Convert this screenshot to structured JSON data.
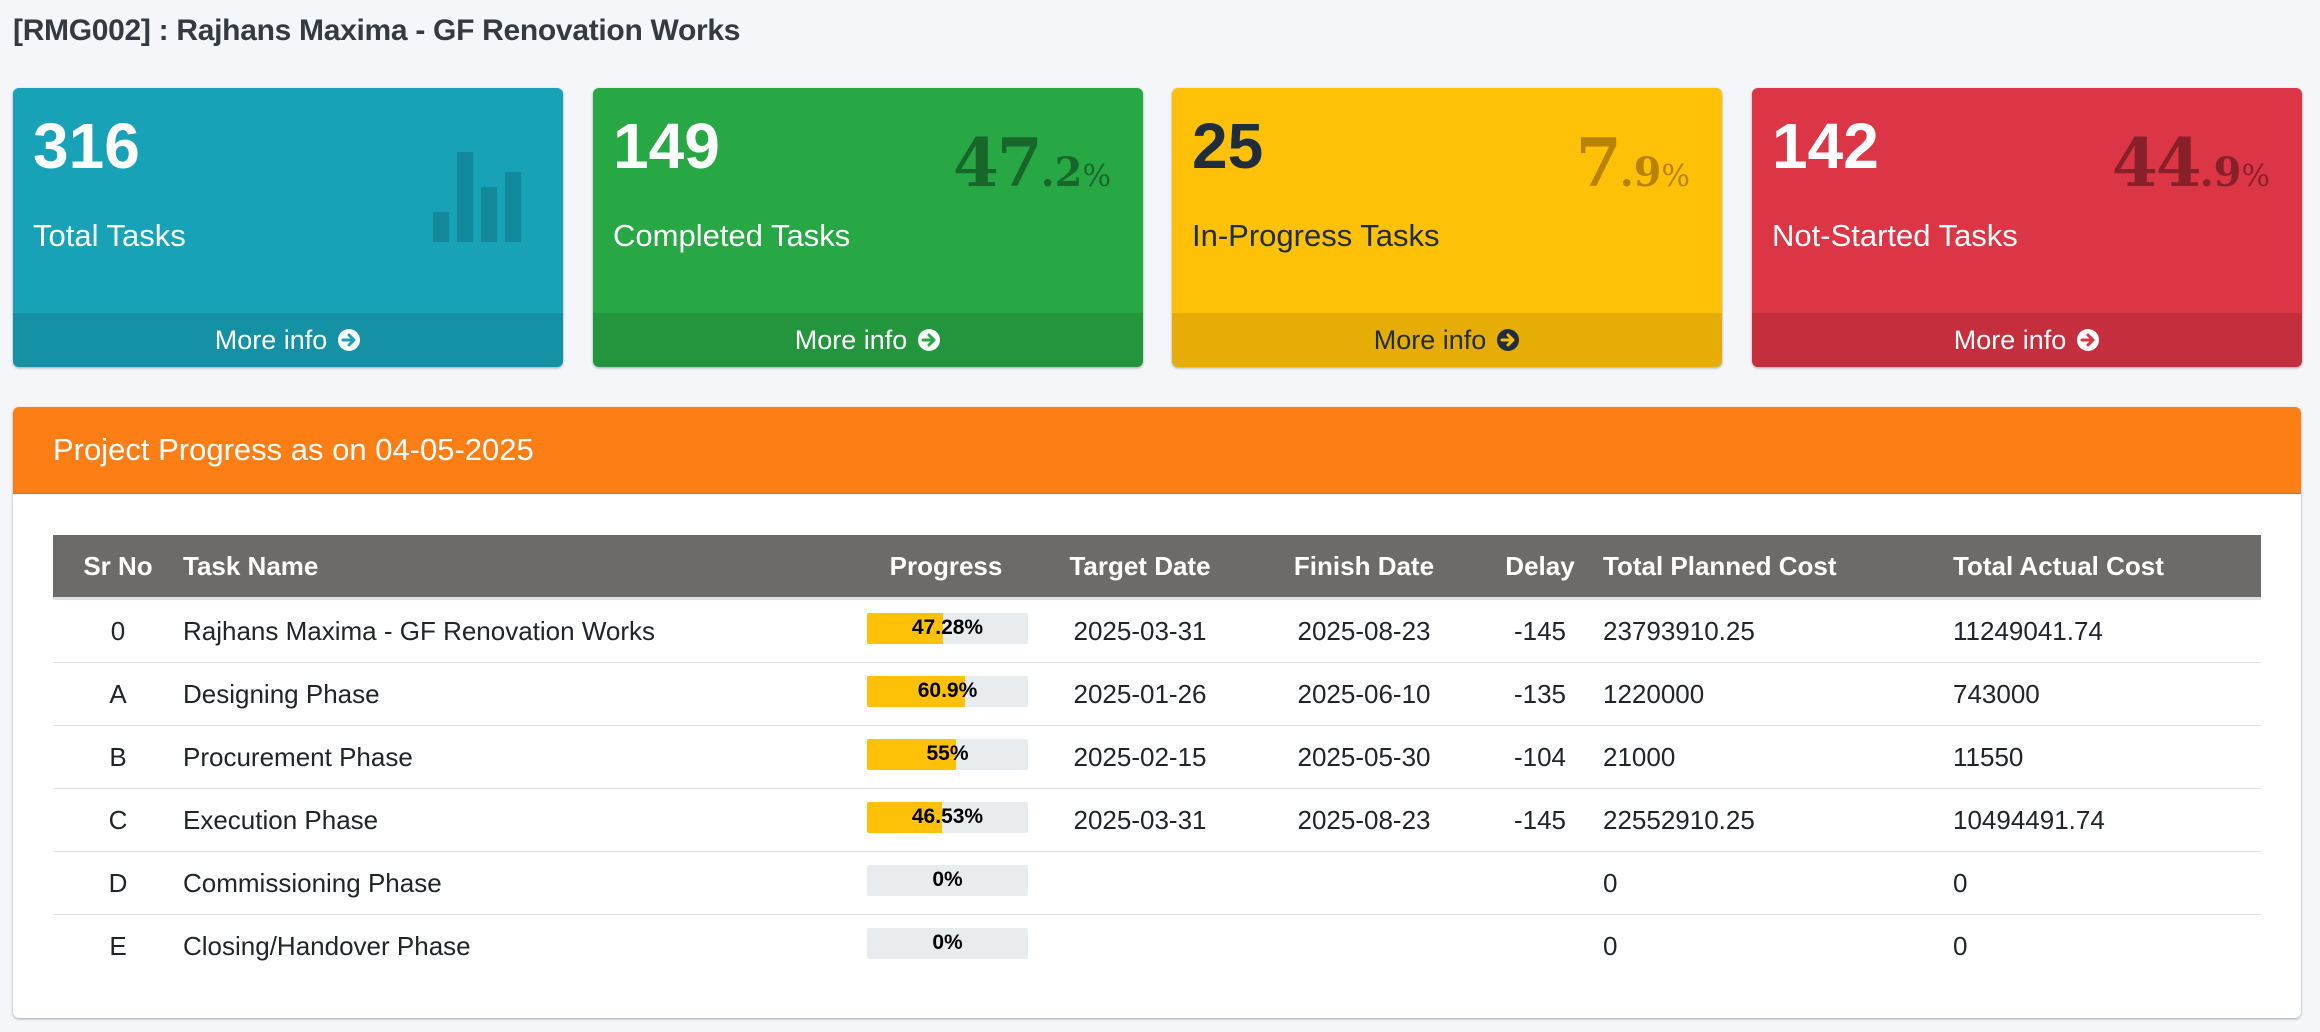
{
  "page": {
    "title": "[RMG002] : Rajhans Maxima - GF Renovation Works"
  },
  "boxes": [
    {
      "number": "316",
      "label": "Total Tasks",
      "pct_int": "",
      "pct_dec": "",
      "pct_sym": "",
      "icon": "bar-chart-icon",
      "footer": "More info",
      "color": "#17a2b8"
    },
    {
      "number": "149",
      "label": "Completed Tasks",
      "pct_int": "47",
      "pct_dec": ".2",
      "pct_sym": "%",
      "footer": "More info",
      "color": "#28a745"
    },
    {
      "number": "25",
      "label": "In-Progress Tasks",
      "pct_int": "7",
      "pct_dec": ".9",
      "pct_sym": "%",
      "footer": "More info",
      "color": "#ffc107"
    },
    {
      "number": "142",
      "label": "Not-Started Tasks",
      "pct_int": "44",
      "pct_dec": ".9",
      "pct_sym": "%",
      "footer": "More info",
      "color": "#dc3545"
    }
  ],
  "progress_card": {
    "title": "Project Progress as on 04-05-2025",
    "header_color": "#fd7e14",
    "columns": [
      "Sr No",
      "Task Name",
      "Progress",
      "Target Date",
      "Finish Date",
      "Delay",
      "Total Planned Cost",
      "Total Actual Cost"
    ],
    "rows": [
      {
        "sr": "0",
        "name": "Rajhans Maxima - GF Renovation Works",
        "progress": "47.28%",
        "progress_value": 47.28,
        "target": "2025-03-31",
        "finish": "2025-08-23",
        "delay": "-145",
        "planned": "23793910.25",
        "actual": "11249041.74"
      },
      {
        "sr": "A",
        "name": "Designing Phase",
        "progress": "60.9%",
        "progress_value": 60.9,
        "target": "2025-01-26",
        "finish": "2025-06-10",
        "delay": "-135",
        "planned": "1220000",
        "actual": "743000"
      },
      {
        "sr": "B",
        "name": "Procurement Phase",
        "progress": "55%",
        "progress_value": 55,
        "target": "2025-02-15",
        "finish": "2025-05-30",
        "delay": "-104",
        "planned": "21000",
        "actual": "11550"
      },
      {
        "sr": "C",
        "name": "Execution Phase",
        "progress": "46.53%",
        "progress_value": 46.53,
        "target": "2025-03-31",
        "finish": "2025-08-23",
        "delay": "-145",
        "planned": "22552910.25",
        "actual": "10494491.74"
      },
      {
        "sr": "D",
        "name": "Commissioning Phase",
        "progress": "0%",
        "progress_value": 0,
        "target": "",
        "finish": "",
        "delay": "",
        "planned": "0",
        "actual": "0"
      },
      {
        "sr": "E",
        "name": "Closing/Handover Phase",
        "progress": "0%",
        "progress_value": 0,
        "target": "",
        "finish": "",
        "delay": "",
        "planned": "0",
        "actual": "0"
      }
    ]
  }
}
